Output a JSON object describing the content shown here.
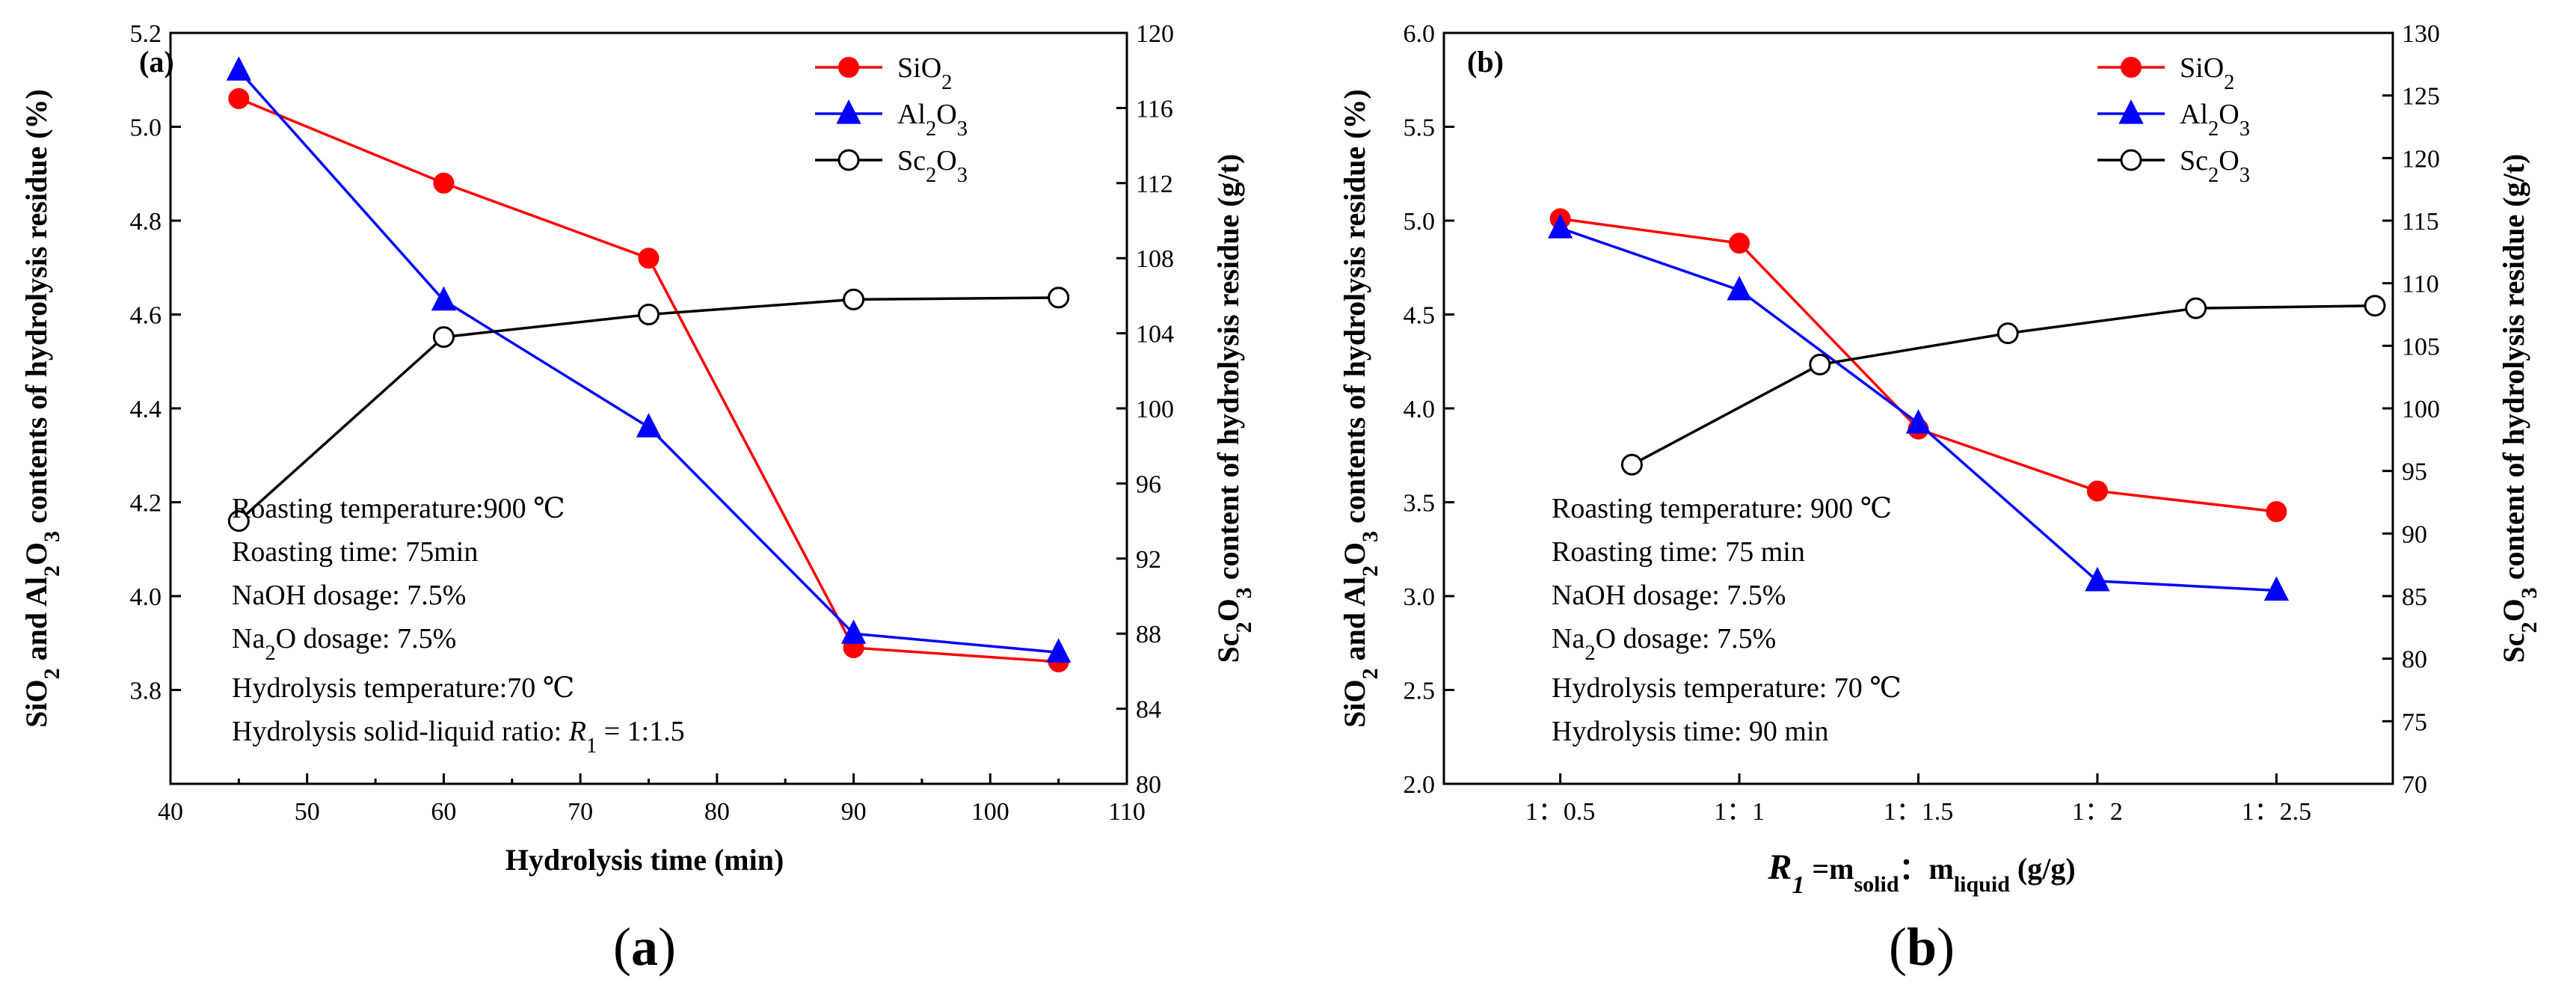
{
  "colors": {
    "sio2": "#ff0000",
    "al2o3": "#0000ff",
    "sc2o3": "#000000",
    "axis": "#000000",
    "background": "#ffffff"
  },
  "chart_data": [
    {
      "type": "line",
      "panel_label": "(a)",
      "caption": "(a)",
      "xlabel": "Hydrolysis time (min)",
      "xlim": [
        40,
        110
      ],
      "xticks": [
        40,
        50,
        60,
        70,
        80,
        90,
        100,
        110
      ],
      "ylabel_left": "SiO2 and Al2O3 contents of hydrolysis residue (%)",
      "ylim_left": [
        3.6,
        5.2
      ],
      "yticks_left": [
        3.8,
        4.0,
        4.2,
        4.4,
        4.6,
        4.8,
        5.0,
        5.2
      ],
      "ylabel_right": "Sc2O3 content of hydrolysis residue (g/t)",
      "ylim_right": [
        80,
        120
      ],
      "yticks_right": [
        80,
        84,
        88,
        92,
        96,
        100,
        104,
        108,
        112,
        116,
        120
      ],
      "series": [
        {
          "name": "SiO2",
          "marker": "circle-filled",
          "color": "#ff0000",
          "axis": "left",
          "x": [
            45,
            60,
            75,
            90,
            105
          ],
          "values": [
            5.06,
            4.88,
            4.72,
            3.89,
            3.86
          ]
        },
        {
          "name": "Al2O3",
          "marker": "triangle-filled",
          "color": "#0000ff",
          "axis": "left",
          "x": [
            45,
            60,
            75,
            90,
            105
          ],
          "values": [
            5.12,
            4.63,
            4.36,
            3.92,
            3.88
          ]
        },
        {
          "name": "Sc2O3",
          "marker": "circle-open",
          "color": "#000000",
          "axis": "right",
          "x": [
            45,
            60,
            75,
            90,
            105
          ],
          "values": [
            94.0,
            103.8,
            105.0,
            105.8,
            105.9
          ]
        }
      ],
      "legend": [
        "SiO2",
        "Al2O3",
        "Sc2O3"
      ],
      "annotations": [
        "Roasting temperature:900 ℃",
        "Roasting time: 75min",
        "NaOH dosage: 7.5%",
        "Na2O dosage: 7.5%",
        "Hydrolysis temperature:70 ℃",
        "Hydrolysis solid-liquid ratio: R1 = 1:1.5"
      ]
    },
    {
      "type": "line",
      "panel_label": "(b)",
      "caption": "(b)",
      "xlabel": "R1 =msolid：mliquid (g/g)",
      "categories": [
        "1：0.5",
        "1：1",
        "1：1.5",
        "1：2",
        "1：2.5"
      ],
      "ylabel_left": "SiO2 and Al2O3 contents of hydrolysis residue (%)",
      "ylim_left": [
        2.0,
        6.0
      ],
      "yticks_left": [
        2.0,
        2.5,
        3.0,
        3.5,
        4.0,
        4.5,
        5.0,
        5.5,
        6.0
      ],
      "ylabel_right": "Sc2O3 content of hydrolysis residue (g/t)",
      "ylim_right": [
        70,
        130
      ],
      "yticks_right": [
        70,
        75,
        80,
        85,
        90,
        95,
        100,
        105,
        110,
        115,
        120,
        125,
        130
      ],
      "series": [
        {
          "name": "SiO2",
          "marker": "circle-filled",
          "color": "#ff0000",
          "axis": "left",
          "x": [
            1,
            2,
            3,
            4,
            5
          ],
          "values": [
            5.01,
            4.88,
            3.89,
            3.56,
            3.45
          ]
        },
        {
          "name": "Al2O3",
          "marker": "triangle-filled",
          "color": "#0000ff",
          "axis": "left",
          "x": [
            1,
            2,
            3,
            4,
            5
          ],
          "values": [
            4.96,
            4.63,
            3.92,
            3.08,
            3.03
          ]
        },
        {
          "name": "Sc2O3",
          "marker": "circle-open",
          "color": "#000000",
          "axis": "right",
          "x": [
            1.4,
            2.45,
            3.5,
            4.55,
            5.55
          ],
          "values": [
            95.5,
            103.5,
            106.0,
            108.0,
            108.2
          ]
        }
      ],
      "legend": [
        "SiO2",
        "Al2O3",
        "Sc2O3"
      ],
      "annotations": [
        "Roasting temperature: 900 ℃",
        "Roasting time: 75 min",
        "NaOH dosage: 7.5%",
        "Na2O dosage: 7.5%",
        "Hydrolysis temperature: 70 ℃",
        "Hydrolysis time: 90 min"
      ]
    }
  ]
}
